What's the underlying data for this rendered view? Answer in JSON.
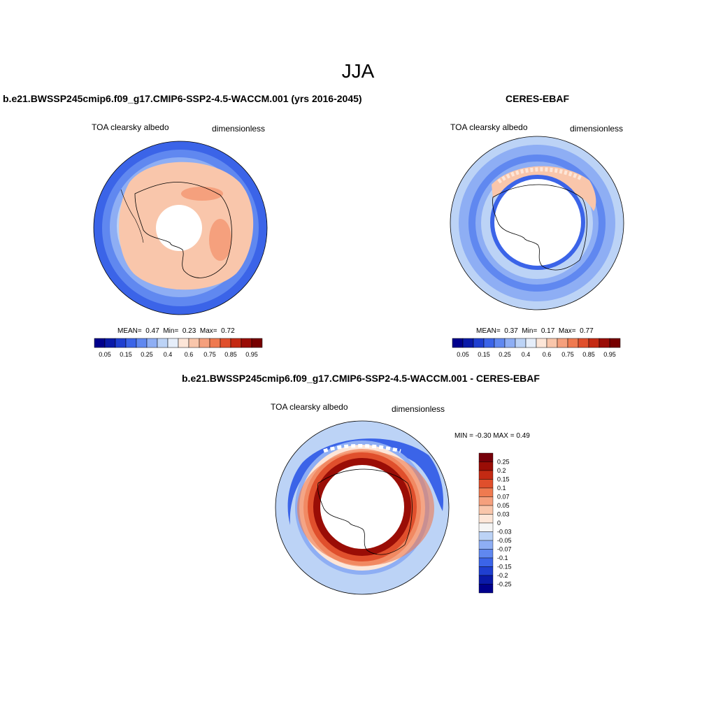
{
  "season": "JJA",
  "colors": {
    "seq": [
      "#00008c",
      "#0a1aa8",
      "#1f3fd0",
      "#3b64e8",
      "#6088f0",
      "#8eaef4",
      "#bcd3f6",
      "#e6eefa",
      "#fde6d8",
      "#f9c6ab",
      "#f5a07d",
      "#ef7a50",
      "#e04f2c",
      "#c42a13",
      "#9a0d06",
      "#760000"
    ],
    "diff": [
      "#76000a",
      "#9a0d06",
      "#c42a13",
      "#e04f2c",
      "#ef7a50",
      "#f5a07d",
      "#f9c6ab",
      "#fde6d8",
      "#f5f5f5",
      "#bcd3f6",
      "#8eaef4",
      "#6088f0",
      "#3b64e8",
      "#1f3fd0",
      "#0a1aa8",
      "#00008c"
    ],
    "land": "#000000"
  },
  "panel_model": {
    "title": "b.e21.BWSSP245cmip6.f09_g17.CMIP6-SSP2-4.5-WACCM.001 (yrs 2016-2045)",
    "left_label": "TOA clearsky albedo",
    "right_label": "dimensionless",
    "stats": {
      "mean_label": "MEAN=",
      "mean": "0.47",
      "min_label": "Min=",
      "min": "0.23",
      "max_label": "Max=",
      "max": "0.72"
    },
    "ticks": [
      "0.05",
      "0.15",
      "0.25",
      "0.4",
      "0.6",
      "0.75",
      "0.85",
      "0.95"
    ]
  },
  "panel_obs": {
    "title": "CERES-EBAF",
    "left_label": "TOA clearsky albedo",
    "right_label": "dimensionless",
    "stats": {
      "mean_label": "MEAN=",
      "mean": "0.37",
      "min_label": "Min=",
      "min": "0.17",
      "max_label": "Max=",
      "max": "0.77"
    },
    "ticks": [
      "0.05",
      "0.15",
      "0.25",
      "0.4",
      "0.6",
      "0.75",
      "0.85",
      "0.95"
    ]
  },
  "panel_diff": {
    "title": "b.e21.BWSSP245cmip6.f09_g17.CMIP6-SSP2-4.5-WACCM.001 - CERES-EBAF",
    "left_label": "TOA clearsky albedo",
    "right_label": "dimensionless",
    "minmax": "MIN =  -0.30 MAX =   0.49",
    "ticks": [
      "0.25",
      "0.2",
      "0.15",
      "0.1",
      "0.07",
      "0.05",
      "0.03",
      "0",
      "-0.03",
      "-0.05",
      "-0.07",
      "-0.1",
      "-0.15",
      "-0.2",
      "-0.25"
    ]
  }
}
